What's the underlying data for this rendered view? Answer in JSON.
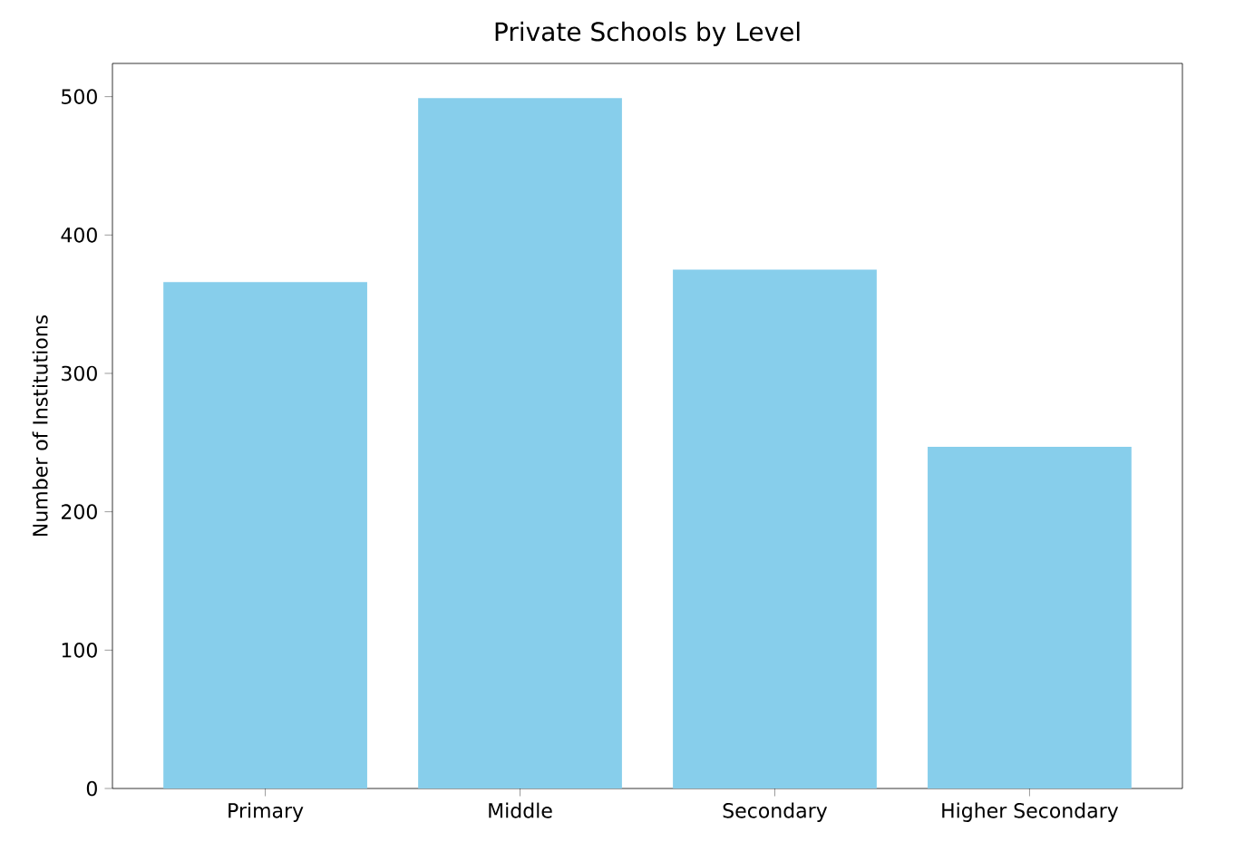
{
  "chart_data": {
    "type": "bar",
    "title": "Private Schools by Level",
    "ylabel": "Number of Institutions",
    "categories": [
      "Primary",
      "Middle",
      "Secondary",
      "Higher Secondary"
    ],
    "values": [
      366,
      499,
      375,
      247
    ],
    "color": "#87ceeb",
    "ylim": [
      0,
      524
    ],
    "yticks": [
      0,
      100,
      200,
      300,
      400,
      500
    ],
    "grid": false
  }
}
